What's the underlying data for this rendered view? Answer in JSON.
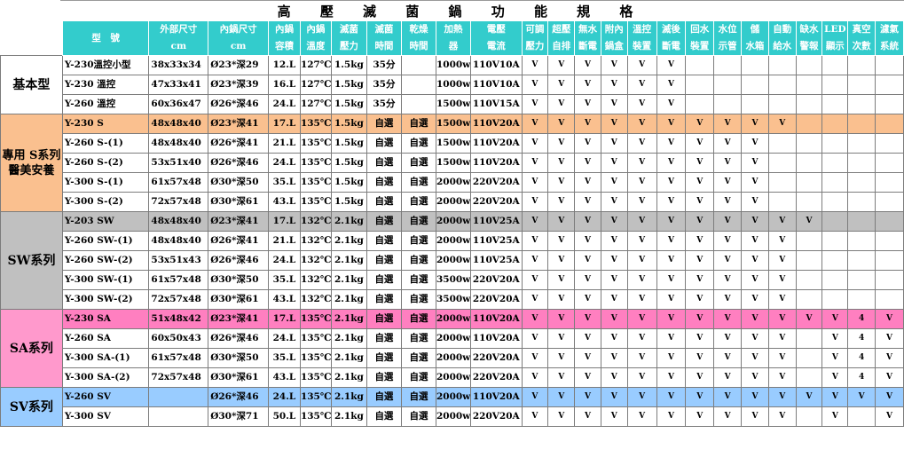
{
  "title": "高 壓 滅 菌 鍋 功 能 規 格",
  "headers": [
    {
      "l1": "型　號",
      "l2": ""
    },
    {
      "l1": "外部尺寸",
      "l2": "cm"
    },
    {
      "l1": "內鍋尺寸",
      "l2": "cm"
    },
    {
      "l1": "內鍋",
      "l2": "容積"
    },
    {
      "l1": "內鍋",
      "l2": "溫度"
    },
    {
      "l1": "滅菌",
      "l2": "壓力"
    },
    {
      "l1": "滅菌",
      "l2": "時間"
    },
    {
      "l1": "乾燥",
      "l2": "時間"
    },
    {
      "l1": "加熱",
      "l2": "器"
    },
    {
      "l1": "電壓",
      "l2": "電流"
    },
    {
      "l1": "可調",
      "l2": "壓力"
    },
    {
      "l1": "超壓",
      "l2": "自排"
    },
    {
      "l1": "無水",
      "l2": "斷電"
    },
    {
      "l1": "附內",
      "l2": "鍋盒"
    },
    {
      "l1": "溫控",
      "l2": "裝置"
    },
    {
      "l1": "滅後",
      "l2": "斷電"
    },
    {
      "l1": "回水",
      "l2": "裝置"
    },
    {
      "l1": "水位",
      "l2": "示管"
    },
    {
      "l1": "儲",
      "l2": "水箱"
    },
    {
      "l1": "自動",
      "l2": "給水"
    },
    {
      "l1": "缺水",
      "l2": "警報"
    },
    {
      "l1": "LED",
      "l2": "顯示"
    },
    {
      "l1": "真空",
      "l2": "次數"
    },
    {
      "l1": "濾氣",
      "l2": "系統"
    }
  ],
  "groups": [
    {
      "label": "基本型",
      "rows": [
        {
          "cells": [
            "Y-230溫控小型",
            "38x33x34",
            "Ø23*深29",
            "12.L",
            "127℃",
            "1.5kg",
            "35分",
            "",
            "1000w",
            "110V10A",
            "V",
            "V",
            "V",
            "V",
            "V",
            "V",
            "",
            "",
            "",
            "",
            "",
            "",
            "",
            ""
          ]
        },
        {
          "cells": [
            "Y-230 溫控",
            "47x33x41",
            "Ø23*深39",
            "16.L",
            "127℃",
            "1.5kg",
            "35分",
            "",
            "1000w",
            "110V10A",
            "V",
            "V",
            "V",
            "V",
            "V",
            "V",
            "",
            "",
            "",
            "",
            "",
            "",
            "",
            ""
          ]
        },
        {
          "cells": [
            "Y-260 溫控",
            "60x36x47",
            "Ø26*深46",
            "24.L",
            "127℃",
            "1.5kg",
            "35分",
            "",
            "1500w",
            "110V15A",
            "V",
            "V",
            "V",
            "V",
            "V",
            "V",
            "",
            "",
            "",
            "",
            "",
            "",
            "",
            ""
          ]
        }
      ]
    },
    {
      "label": "專用 S系列 醫美安養",
      "rows": [
        {
          "cells": [
            "Y-230 S",
            "48x48x40",
            "Ø23*深41",
            "17.L",
            "135℃",
            "1.5kg",
            "自選",
            "自選",
            "1500w",
            "110V20A",
            "V",
            "V",
            "V",
            "V",
            "V",
            "V",
            "V",
            "V",
            "V",
            "V",
            "",
            "",
            "",
            ""
          ]
        },
        {
          "cells": [
            "Y-260 S-(1)",
            "48x48x40",
            "Ø26*深41",
            "21.L",
            "135℃",
            "1.5kg",
            "自選",
            "自選",
            "1500w",
            "110V20A",
            "V",
            "V",
            "V",
            "V",
            "V",
            "V",
            "V",
            "V",
            "V",
            "",
            "",
            "",
            "",
            ""
          ]
        },
        {
          "cells": [
            "Y-260 S-(2)",
            "53x51x40",
            "Ø26*深46",
            "24.L",
            "135℃",
            "1.5kg",
            "自選",
            "自選",
            "1500w",
            "110V20A",
            "V",
            "V",
            "V",
            "V",
            "V",
            "V",
            "V",
            "V",
            "V",
            "",
            "",
            "",
            "",
            ""
          ]
        },
        {
          "cells": [
            "Y-300 S-(1)",
            "61x57x48",
            "Ø30*深50",
            "35.L",
            "135℃",
            "1.5kg",
            "自選",
            "自選",
            "2000w",
            "220V20A",
            "V",
            "V",
            "V",
            "V",
            "V",
            "V",
            "V",
            "V",
            "V",
            "",
            "",
            "",
            "",
            ""
          ]
        },
        {
          "cells": [
            "Y-300 S-(2)",
            "72x57x48",
            "Ø30*深61",
            "43.L",
            "135℃",
            "1.5kg",
            "自選",
            "自選",
            "2000w",
            "220V20A",
            "V",
            "V",
            "V",
            "V",
            "V",
            "V",
            "V",
            "V",
            "V",
            "",
            "",
            "",
            "",
            ""
          ]
        }
      ]
    },
    {
      "label": "SW系列",
      "rows": [
        {
          "cells": [
            "Y-203 SW",
            "48x48x40",
            "Ø23*深41",
            "17.L",
            "132℃",
            "2.1kg",
            "自選",
            "自選",
            "2000w",
            "110V25A",
            "V",
            "V",
            "V",
            "V",
            "V",
            "V",
            "V",
            "V",
            "V",
            "V",
            "V",
            "",
            "",
            ""
          ]
        },
        {
          "cells": [
            "Y-260 SW-(1)",
            "48x48x40",
            "Ø26*深41",
            "21.L",
            "132℃",
            "2.1kg",
            "自選",
            "自選",
            "2000w",
            "110V25A",
            "V",
            "V",
            "V",
            "V",
            "V",
            "V",
            "V",
            "V",
            "V",
            "V",
            "",
            "",
            "",
            ""
          ]
        },
        {
          "cells": [
            "Y-260 SW-(2)",
            "53x51x43",
            "Ø26*深46",
            "24.L",
            "132℃",
            "2.1kg",
            "自選",
            "自選",
            "2000w",
            "110V25A",
            "V",
            "V",
            "V",
            "V",
            "V",
            "V",
            "V",
            "V",
            "V",
            "V",
            "",
            "",
            "",
            ""
          ]
        },
        {
          "cells": [
            "Y-300 SW-(1)",
            "61x57x48",
            "Ø30*深50",
            "35.L",
            "132℃",
            "2.1kg",
            "自選",
            "自選",
            "3500w",
            "220V20A",
            "V",
            "V",
            "V",
            "V",
            "V",
            "V",
            "V",
            "V",
            "V",
            "V",
            "",
            "",
            "",
            ""
          ]
        },
        {
          "cells": [
            "Y-300 SW-(2)",
            "72x57x48",
            "Ø30*深61",
            "43.L",
            "132℃",
            "2.1kg",
            "自選",
            "自選",
            "3500w",
            "220V20A",
            "V",
            "V",
            "V",
            "V",
            "V",
            "V",
            "V",
            "V",
            "V",
            "V",
            "",
            "",
            "",
            ""
          ]
        }
      ]
    },
    {
      "label": "SA系列",
      "rows": [
        {
          "cells": [
            "Y-230 SA",
            "51x48x42",
            "Ø23*深41",
            "17.L",
            "135℃",
            "2.1kg",
            "自選",
            "自選",
            "2000w",
            "110V20A",
            "V",
            "V",
            "V",
            "V",
            "V",
            "V",
            "V",
            "V",
            "V",
            "V",
            "V",
            "V",
            "4",
            "V"
          ]
        },
        {
          "cells": [
            "Y-260 SA",
            "60x50x43",
            "Ø26*深46",
            "24.L",
            "135℃",
            "2.1kg",
            "自選",
            "自選",
            "2000w",
            "110V20A",
            "V",
            "V",
            "V",
            "V",
            "V",
            "V",
            "V",
            "V",
            "V",
            "V",
            "",
            "V",
            "4",
            "V"
          ]
        },
        {
          "cells": [
            "Y-300 SA-(1)",
            "61x57x48",
            "Ø30*深50",
            "35.L",
            "135℃",
            "2.1kg",
            "自選",
            "自選",
            "2000w",
            "220V20A",
            "V",
            "V",
            "V",
            "V",
            "V",
            "V",
            "V",
            "V",
            "V",
            "V",
            "",
            "V",
            "4",
            "V"
          ]
        },
        {
          "cells": [
            "Y-300 SA-(2)",
            "72x57x48",
            "Ø30*深61",
            "43.L",
            "135℃",
            "2.1kg",
            "自選",
            "自選",
            "2000w",
            "220V20A",
            "V",
            "V",
            "V",
            "V",
            "V",
            "V",
            "V",
            "V",
            "V",
            "V",
            "",
            "V",
            "4",
            "V"
          ]
        }
      ]
    },
    {
      "label": "SV系列",
      "rows": [
        {
          "cells": [
            "Y-260 SV",
            "",
            "Ø26*深46",
            "24.L",
            "135℃",
            "2.1kg",
            "自選",
            "自選",
            "2000w",
            "110V20A",
            "V",
            "V",
            "V",
            "V",
            "V",
            "V",
            "V",
            "V",
            "V",
            "V",
            "V",
            "V",
            "V",
            "V"
          ]
        },
        {
          "cells": [
            "Y-300 SV",
            "",
            "Ø30*深71",
            "50.L",
            "135℃",
            "2.1kg",
            "自選",
            "自選",
            "2000w",
            "220V20A",
            "V",
            "V",
            "V",
            "V",
            "V",
            "V",
            "V",
            "V",
            "V",
            "V",
            "",
            "V",
            "",
            "V"
          ]
        }
      ]
    }
  ],
  "colors": {
    "header": "#33cccc",
    "orange": "#fac08f",
    "grey": "#c0c0c0",
    "pink": "#ff7fc0",
    "blue": "#99ccff"
  }
}
